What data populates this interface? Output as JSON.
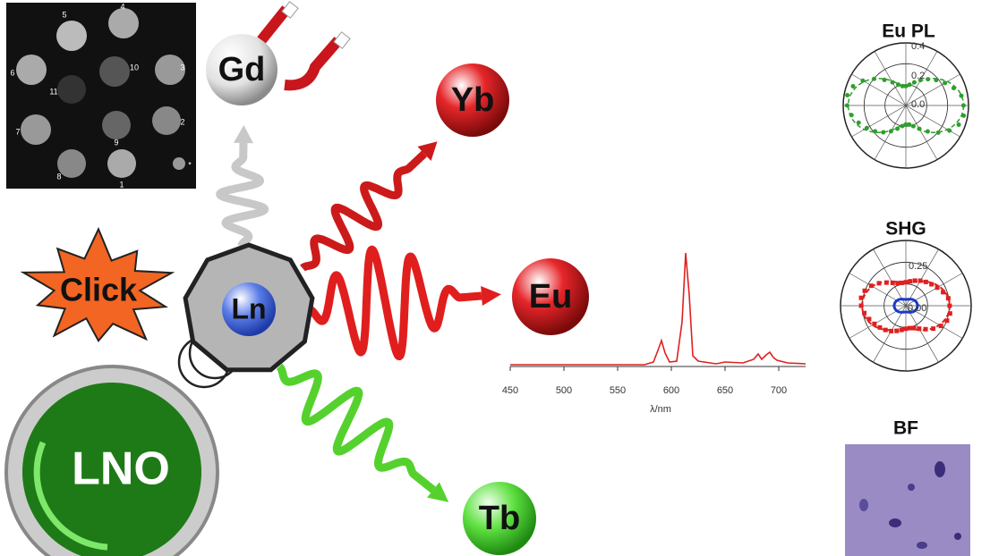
{
  "mri_panel": {
    "labels": [
      "5",
      "4",
      "6",
      "10",
      "3",
      "11",
      "7",
      "9",
      "2",
      "8",
      "1",
      "*"
    ]
  },
  "elements": {
    "gd": "Gd",
    "yb": "Yb",
    "eu": "Eu",
    "tb": "Tb",
    "ln": "Ln",
    "click": "Click",
    "lno": "LNO"
  },
  "spectrum": {
    "x_ticks": [
      "450",
      "500",
      "550",
      "600",
      "650",
      "700"
    ],
    "x_label": "λ/nm"
  },
  "eu_pl": {
    "title": "Eu PL",
    "ticks": [
      "0.4",
      "0.2",
      "0.0"
    ]
  },
  "shg": {
    "title": "SHG",
    "ticks": [
      "0.25",
      "0.00"
    ]
  },
  "bf": {
    "title": "BF"
  }
}
